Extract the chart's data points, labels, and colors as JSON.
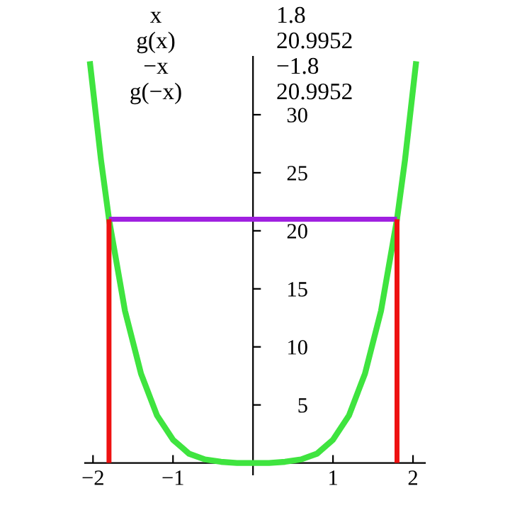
{
  "chart_data": {
    "type": "line",
    "annotations": [
      "x",
      "1.8",
      "g(x)",
      "20.9952",
      "−x",
      "−1.8",
      "g(−x)",
      "20.9952"
    ],
    "series": [
      {
        "color": "#3fe43f",
        "x": [
          -2.04,
          -1.9,
          -1.8,
          -1.6,
          -1.4,
          -1.2,
          -1.0,
          -0.8,
          -0.6,
          -0.4,
          -0.2,
          0,
          0.2,
          0.4,
          0.6,
          0.8,
          1.0,
          1.2,
          1.4,
          1.6,
          1.8,
          1.9,
          2.04
        ],
        "values": [
          34.6,
          26.1,
          21.0,
          13.1,
          7.7,
          4.1,
          2.0,
          0.8,
          0.3,
          0.1,
          0,
          0,
          0,
          0.1,
          0.3,
          0.8,
          2.0,
          4.1,
          7.7,
          13.1,
          21.0,
          26.1,
          34.6
        ]
      },
      {
        "color": "#a020e0",
        "x": [
          -1.8,
          1.8
        ],
        "values": [
          21.0,
          21.0
        ]
      },
      {
        "color": "#ee1111",
        "x": [
          -1.8,
          -1.8
        ],
        "values": [
          0,
          21.0
        ]
      },
      {
        "color": "#ee1111",
        "x": [
          1.8,
          1.8
        ],
        "values": [
          0,
          21.0
        ]
      }
    ],
    "xlim": [
      -2.1,
      2.15
    ],
    "ylim": [
      -1,
      35
    ],
    "xticks": [
      {
        "value": -2,
        "label": "−2"
      },
      {
        "value": -1,
        "label": "−1"
      },
      1,
      2
    ],
    "yticks": [
      5,
      10,
      15,
      20,
      25,
      30
    ],
    "grid": false,
    "legend": false
  }
}
